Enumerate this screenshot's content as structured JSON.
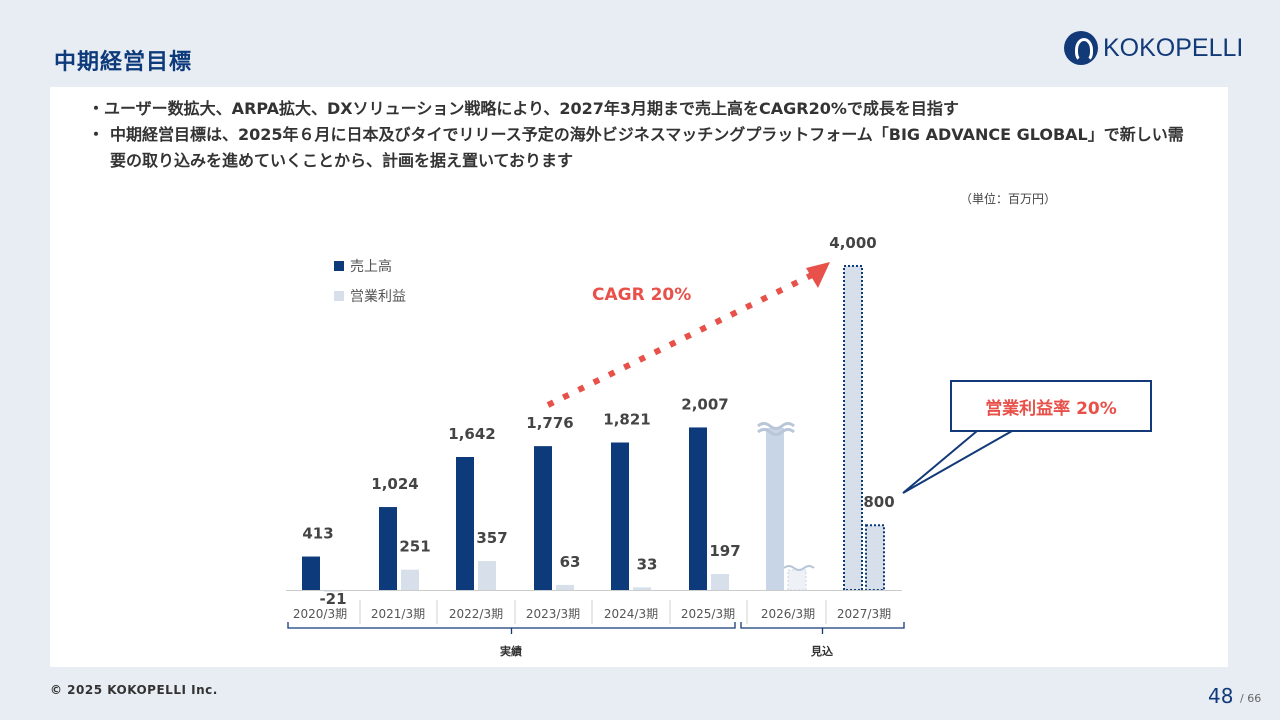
{
  "page_title": "中期経営目標",
  "logo_text": "KOKOPELLI",
  "bullets": [
    "・ユーザー数拡大、ARPA拡大、DXソリューション戦略により、2027年3月期まで売上高をCAGR20%で成長を目指す",
    "中期経営目標は、2025年６月に日本及びタイでリリース予定の海外ビジネスマッチングプラットフォーム「BIG ADVANCE GLOBAL」で新しい需要の取り込みを進めていくことから、計画を据え置いております"
  ],
  "bullet2_mark": "・",
  "unit_label": "（単位：百万円）",
  "cagr_label": "CAGR 20%",
  "callout_label": "営業利益率 20%",
  "footer": "© 2025 KOKOPELLI Inc.",
  "page_number": "48",
  "page_total": "/ 66",
  "colors": {
    "revenue": "#0d3a7a",
    "profit": "#d6dfea",
    "accent": "#e8514a",
    "brand": "#123a78"
  },
  "chart_data": {
    "type": "bar",
    "categories": [
      "2020/3期",
      "2021/3期",
      "2022/3期",
      "2023/3期",
      "2024/3期",
      "2025/3期",
      "2026/3期",
      "2027/3期"
    ],
    "series": [
      {
        "name": "売上高",
        "values": [
          413,
          1024,
          1642,
          1776,
          1821,
          2007,
          null,
          4000
        ],
        "labels": [
          "413",
          "1,024",
          "1,642",
          "1,776",
          "1,821",
          "2,007",
          "",
          "4,000"
        ]
      },
      {
        "name": "営業利益",
        "values": [
          -21,
          251,
          357,
          63,
          33,
          197,
          null,
          800
        ],
        "labels": [
          "-21",
          "251",
          "357",
          "63",
          "33",
          "197",
          "",
          "800"
        ]
      }
    ],
    "groups": [
      {
        "label": "実績",
        "from": 0,
        "to": 5
      },
      {
        "label": "見込",
        "from": 6,
        "to": 7
      }
    ],
    "ylim": [
      -30,
      4000
    ]
  }
}
